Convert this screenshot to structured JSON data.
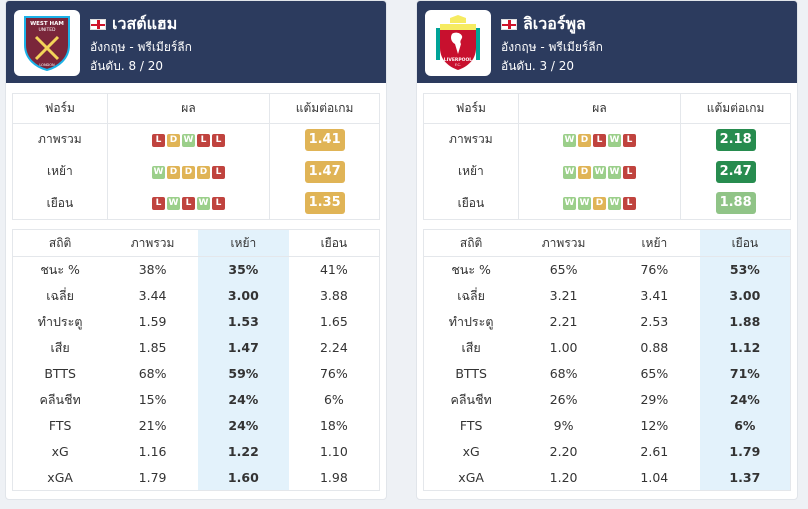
{
  "form_headers": [
    "ฟอร์ม",
    "ผล",
    "แต้มต่อเกม"
  ],
  "stat_headers": [
    "สถิติ",
    "ภาพรวม",
    "เหย้า",
    "เยือน"
  ],
  "teams": [
    {
      "name": "เวสต์แฮม",
      "league": "อังกฤษ - พรีเมียร์ลีก",
      "rank": "อันดับ. 8 / 20",
      "highlight_col": 2,
      "form": [
        {
          "label": "ภาพรวม",
          "results": [
            "L",
            "D",
            "W",
            "L",
            "L"
          ],
          "ppg": "1.41",
          "ppg_color": "yellow"
        },
        {
          "label": "เหย้า",
          "results": [
            "W",
            "D",
            "D",
            "D",
            "L"
          ],
          "ppg": "1.47",
          "ppg_color": "yellow"
        },
        {
          "label": "เยือน",
          "results": [
            "L",
            "W",
            "L",
            "W",
            "L"
          ],
          "ppg": "1.35",
          "ppg_color": "yellow"
        }
      ],
      "stats": [
        {
          "label": "ชนะ %",
          "overall": "38%",
          "home": "35%",
          "away": "41%"
        },
        {
          "label": "เฉลี่ย",
          "overall": "3.44",
          "home": "3.00",
          "away": "3.88"
        },
        {
          "label": "ทำประตู",
          "overall": "1.59",
          "home": "1.53",
          "away": "1.65"
        },
        {
          "label": "เสีย",
          "overall": "1.85",
          "home": "1.47",
          "away": "2.24"
        },
        {
          "label": "BTTS",
          "overall": "68%",
          "home": "59%",
          "away": "76%"
        },
        {
          "label": "คลีนชีท",
          "overall": "15%",
          "home": "24%",
          "away": "6%"
        },
        {
          "label": "FTS",
          "overall": "21%",
          "home": "24%",
          "away": "18%"
        },
        {
          "label": "xG",
          "overall": "1.16",
          "home": "1.22",
          "away": "1.10"
        },
        {
          "label": "xGA",
          "overall": "1.79",
          "home": "1.60",
          "away": "1.98"
        }
      ]
    },
    {
      "name": "ลิเวอร์พูล",
      "league": "อังกฤษ - พรีเมียร์ลีก",
      "rank": "อันดับ. 3 / 20",
      "highlight_col": 3,
      "form": [
        {
          "label": "ภาพรวม",
          "results": [
            "W",
            "D",
            "L",
            "W",
            "L"
          ],
          "ppg": "2.18",
          "ppg_color": "green"
        },
        {
          "label": "เหย้า",
          "results": [
            "W",
            "D",
            "W",
            "W",
            "L"
          ],
          "ppg": "2.47",
          "ppg_color": "green"
        },
        {
          "label": "เยือน",
          "results": [
            "W",
            "W",
            "D",
            "W",
            "L"
          ],
          "ppg": "1.88",
          "ppg_color": "light-green"
        }
      ],
      "stats": [
        {
          "label": "ชนะ %",
          "overall": "65%",
          "home": "76%",
          "away": "53%"
        },
        {
          "label": "เฉลี่ย",
          "overall": "3.21",
          "home": "3.41",
          "away": "3.00"
        },
        {
          "label": "ทำประตู",
          "overall": "2.21",
          "home": "2.53",
          "away": "1.88"
        },
        {
          "label": "เสีย",
          "overall": "1.00",
          "home": "0.88",
          "away": "1.12"
        },
        {
          "label": "BTTS",
          "overall": "68%",
          "home": "65%",
          "away": "71%"
        },
        {
          "label": "คลีนชีท",
          "overall": "26%",
          "home": "29%",
          "away": "24%"
        },
        {
          "label": "FTS",
          "overall": "9%",
          "home": "12%",
          "away": "6%"
        },
        {
          "label": "xG",
          "overall": "2.20",
          "home": "2.61",
          "away": "1.79"
        },
        {
          "label": "xGA",
          "overall": "1.20",
          "home": "1.04",
          "away": "1.37"
        }
      ]
    }
  ],
  "colors": {
    "header_bg": "#2c3b5e",
    "win": "#9bcf8a",
    "draw": "#e0b456",
    "loss": "#c0433e",
    "highlight_bg": "#e3f2fb"
  },
  "logos": {
    "west_ham_text": [
      "WEST HAM",
      "UNITED",
      "LONDON"
    ],
    "liverpool_text": [
      "LIVERPOOL",
      "F.C."
    ]
  }
}
